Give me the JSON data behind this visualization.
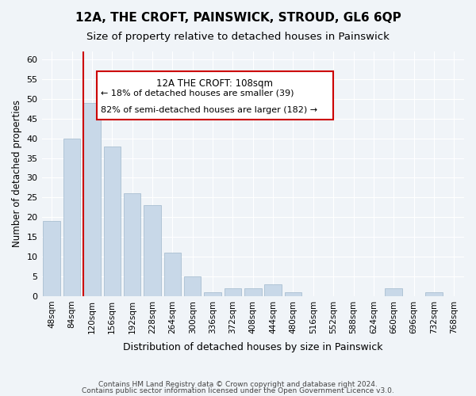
{
  "title": "12A, THE CROFT, PAINSWICK, STROUD, GL6 6QP",
  "subtitle": "Size of property relative to detached houses in Painswick",
  "xlabel": "Distribution of detached houses by size in Painswick",
  "ylabel": "Number of detached properties",
  "bar_color": "#c8d8e8",
  "bar_edge_color": "#a0b8cc",
  "categories": [
    "48sqm",
    "84sqm",
    "120sqm",
    "156sqm",
    "192sqm",
    "228sqm",
    "264sqm",
    "300sqm",
    "336sqm",
    "372sqm",
    "408sqm",
    "444sqm",
    "480sqm",
    "516sqm",
    "552sqm",
    "588sqm",
    "624sqm",
    "660sqm",
    "696sqm",
    "732sqm",
    "768sqm"
  ],
  "values": [
    19,
    40,
    49,
    38,
    26,
    23,
    11,
    5,
    1,
    2,
    2,
    3,
    1,
    0,
    0,
    0,
    0,
    2,
    0,
    1,
    0
  ],
  "ylim": [
    0,
    62
  ],
  "yticks": [
    0,
    5,
    10,
    15,
    20,
    25,
    30,
    35,
    40,
    45,
    50,
    55,
    60
  ],
  "vline_x": 2,
  "vline_color": "#cc0000",
  "annotation_title": "12A THE CROFT: 108sqm",
  "annotation_line1": "← 18% of detached houses are smaller (39)",
  "annotation_line2": "82% of semi-detached houses are larger (182) →",
  "box_color": "#cc0000",
  "footer1": "Contains HM Land Registry data © Crown copyright and database right 2024.",
  "footer2": "Contains public sector information licensed under the Open Government Licence v3.0.",
  "bg_color": "#f0f4f8",
  "grid_color": "#ffffff"
}
